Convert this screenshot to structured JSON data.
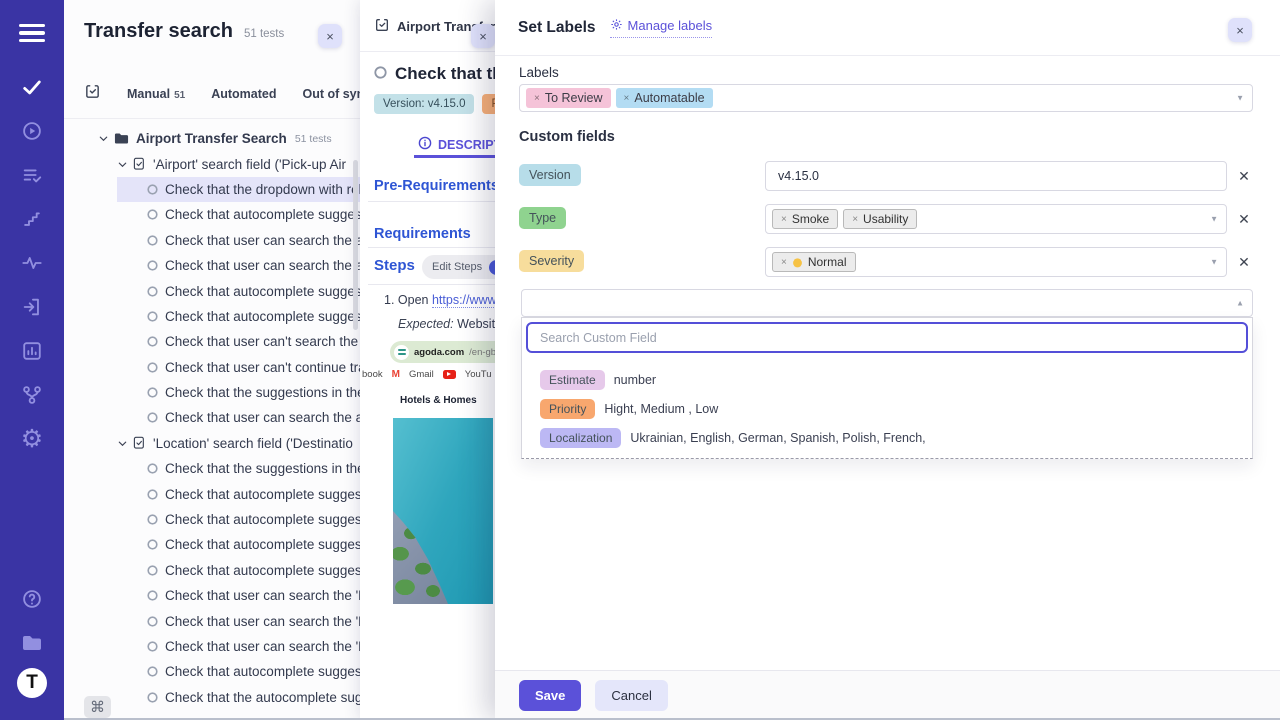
{
  "colors": {
    "sidebar": "#3a34a4",
    "accent": "#5b51d9",
    "heading_blue": "#2e55d4",
    "selected_row": "#e4e4f9"
  },
  "sidebar": {
    "nav": [
      {
        "icon": "menu-icon"
      },
      {
        "icon": "check-icon",
        "active": true
      },
      {
        "icon": "run-icon"
      },
      {
        "icon": "test-plans-icon"
      },
      {
        "icon": "steps-icon"
      },
      {
        "icon": "analytics-icon"
      },
      {
        "icon": "import-icon"
      },
      {
        "icon": "reports-icon"
      },
      {
        "icon": "branch-icon"
      },
      {
        "icon": "settings-icon"
      }
    ],
    "bottom": [
      {
        "icon": "help-icon"
      },
      {
        "icon": "projects-icon"
      },
      {
        "icon": "logo"
      }
    ],
    "logo_letter": "T"
  },
  "tree": {
    "title": "Transfer search",
    "count": "51 tests",
    "close_label": "×",
    "command_key": "⌘",
    "tabs": [
      {
        "label": "Manual",
        "count": "51"
      },
      {
        "label": "Automated"
      },
      {
        "label": "Out of syn"
      }
    ],
    "items": [
      {
        "kind": "folder",
        "level": 1,
        "label": "Airport Transfer Search",
        "meta": "51 tests"
      },
      {
        "kind": "doc",
        "level": 2,
        "label": "'Airport' search field ('Pick-up Air"
      },
      {
        "kind": "test",
        "level": 3,
        "label": "Check that the dropdown with rel",
        "selected": true
      },
      {
        "kind": "test",
        "level": 3,
        "label": "Check that autocomplete suggest"
      },
      {
        "kind": "test",
        "level": 3,
        "label": "Check that user can search the ai"
      },
      {
        "kind": "test",
        "level": 3,
        "label": "Check that user can search the ai"
      },
      {
        "kind": "test",
        "level": 3,
        "label": "Check that autocomplete suggest"
      },
      {
        "kind": "test",
        "level": 3,
        "label": "Check that autocomplete suggest"
      },
      {
        "kind": "test",
        "level": 3,
        "label": "Check that user can't search the a"
      },
      {
        "kind": "test",
        "level": 3,
        "label": "Check that user can't continue tra"
      },
      {
        "kind": "test",
        "level": 3,
        "label": "Check that the suggestions in the"
      },
      {
        "kind": "test",
        "level": 3,
        "label": "Check that user can search the ai"
      },
      {
        "kind": "doc",
        "level": 2,
        "label": "'Location' search field ('Destinatio"
      },
      {
        "kind": "test",
        "level": 3,
        "label": "Check that the suggestions in the"
      },
      {
        "kind": "test",
        "level": 3,
        "label": "Check that autocomplete suggest"
      },
      {
        "kind": "test",
        "level": 3,
        "label": "Check that autocomplete suggest"
      },
      {
        "kind": "test",
        "level": 3,
        "label": "Check that autocomplete suggest"
      },
      {
        "kind": "test",
        "level": 3,
        "label": "Check that autocomplete suggest"
      },
      {
        "kind": "test",
        "level": 3,
        "label": "Check that user can search the 'Lo"
      },
      {
        "kind": "test",
        "level": 3,
        "label": "Check that user can search the 'Lo"
      },
      {
        "kind": "test",
        "level": 3,
        "label": "Check that user can search the 'Lo"
      },
      {
        "kind": "test",
        "level": 3,
        "label": "Check that autocomplete suggest"
      },
      {
        "kind": "test",
        "level": 3,
        "label": "Check that the autocomplete sugg"
      }
    ]
  },
  "detail": {
    "tab_label": "Airport Transfer",
    "close_label": "×",
    "title": "Check that the",
    "badges": [
      {
        "text": "Version: v4.15.0",
        "bg": "#c3e1e8",
        "fg": "#37505c"
      },
      {
        "text": "Priority",
        "bg": "#f9b078",
        "fg": "#7c4a1e"
      }
    ],
    "description_tab": "DESCRIPTION",
    "pre_requirements": "Pre-Requirements",
    "requirements": "Requirements",
    "steps": "Steps",
    "edit_steps": "Edit Steps",
    "step_prefix": "1. Open",
    "step_link": "https://www.a",
    "expected_label": "Expected:",
    "expected_text": "Website is",
    "thumb": {
      "domain": "agoda.com",
      "path": "/en-gb/?",
      "bookmark1": "book",
      "bookmark2": "Gmail",
      "bookmark3": "YouTu",
      "caption": "Hotels & Homes"
    }
  },
  "modal": {
    "title": "Set Labels",
    "manage_labels": "Manage labels",
    "close_label": "×",
    "labels_label": "Labels",
    "label_tags": [
      {
        "text": "To Review",
        "bg": "#f5c3d8"
      },
      {
        "text": "Automatable",
        "bg": "#b3dcf3"
      }
    ],
    "custom_fields_label": "Custom fields",
    "fields": [
      {
        "name": "Version",
        "bg": "#b7dde9",
        "type": "input",
        "value": "v4.15.0"
      },
      {
        "name": "Type",
        "bg": "#8fd38f",
        "type": "select",
        "tags": [
          "Smoke",
          "Usability"
        ]
      },
      {
        "name": "Severity",
        "bg": "#f7dd9c",
        "type": "select",
        "tags": [
          "Normal"
        ],
        "emoji_dot": "#f6c244"
      }
    ],
    "search_placeholder": "Search Custom Field",
    "options": [
      {
        "name": "Estimate",
        "bg": "#e6c9ea",
        "desc": "number"
      },
      {
        "name": "Priority",
        "bg": "#f8a76e",
        "desc": "Hight, Medium , Low"
      },
      {
        "name": "Localization",
        "bg": "#bcb8f4",
        "desc": "Ukrainian, English, German, Spanish, Polish, French,"
      }
    ],
    "save": "Save",
    "cancel": "Cancel"
  }
}
